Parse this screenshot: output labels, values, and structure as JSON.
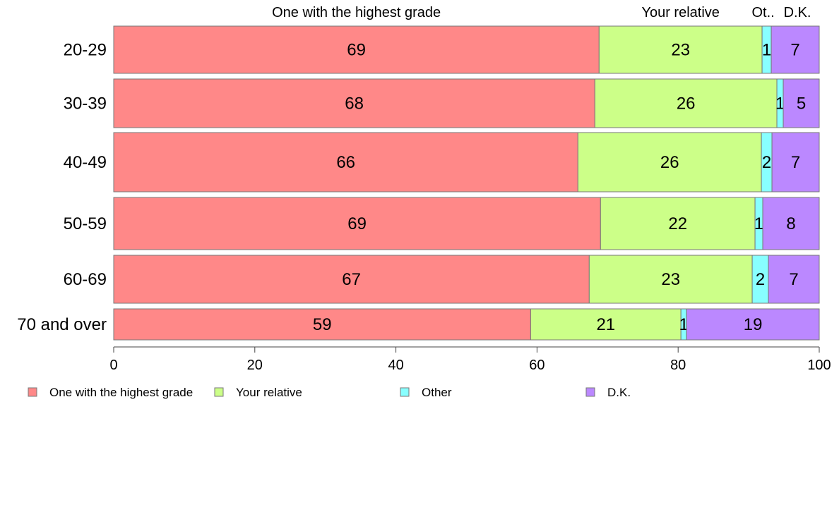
{
  "chart_data": {
    "type": "bar",
    "orientation": "horizontal",
    "stacked": true,
    "categories": [
      "20-29",
      "30-39",
      "40-49",
      "50-59",
      "60-69",
      "70 and over"
    ],
    "series": [
      {
        "name": "One with the highest grade",
        "color": "#ff8888",
        "values": [
          68.8,
          68.2,
          65.8,
          69.0,
          67.4,
          59.1
        ]
      },
      {
        "name": "Your relative",
        "color": "#ccff88",
        "values": [
          23.1,
          25.8,
          26.0,
          21.9,
          23.1,
          21.3
        ]
      },
      {
        "name": "Other",
        "color": "#88ffff",
        "values": [
          1.3,
          0.9,
          1.5,
          1.1,
          2.3,
          0.8
        ]
      },
      {
        "name": "D.K.",
        "color": "#bb88ff",
        "values": [
          6.8,
          5.1,
          6.7,
          8.0,
          7.2,
          18.8
        ]
      }
    ],
    "value_labels": [
      [
        "69",
        "23",
        "1",
        "7"
      ],
      [
        "68",
        "26",
        "1",
        "5"
      ],
      [
        "66",
        "26",
        "2",
        "7"
      ],
      [
        "69",
        "22",
        "1",
        "8"
      ],
      [
        "67",
        "23",
        "2",
        "7"
      ],
      [
        "59",
        "21",
        "1",
        "19"
      ]
    ],
    "top_labels": [
      "One with the highest grade",
      "Your relative",
      "Ot..",
      "D.K."
    ],
    "xlim": [
      0,
      100
    ],
    "xticks": [
      "0",
      "20",
      "40",
      "60",
      "80",
      "100"
    ],
    "xlabel": "",
    "ylabel": "",
    "title": "",
    "grid": false,
    "legend_position": "bottom-left"
  }
}
